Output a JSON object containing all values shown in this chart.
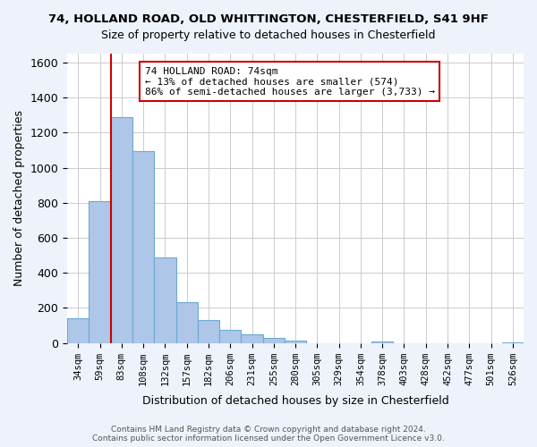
{
  "title": "74, HOLLAND ROAD, OLD WHITTINGTON, CHESTERFIELD, S41 9HF",
  "subtitle": "Size of property relative to detached houses in Chesterfield",
  "xlabel": "Distribution of detached houses by size in Chesterfield",
  "ylabel": "Number of detached properties",
  "bar_values": [
    140,
    810,
    1290,
    1095,
    490,
    235,
    130,
    75,
    50,
    28,
    15,
    0,
    0,
    0,
    10,
    0,
    0,
    0,
    0,
    0,
    5
  ],
  "x_tick_labels": [
    "34sqm",
    "59sqm",
    "83sqm",
    "108sqm",
    "132sqm",
    "157sqm",
    "182sqm",
    "206sqm",
    "231sqm",
    "255sqm",
    "280sqm",
    "305sqm",
    "329sqm",
    "354sqm",
    "378sqm",
    "403sqm",
    "428sqm",
    "452sqm",
    "477sqm",
    "501sqm",
    "526sqm"
  ],
  "bar_color": "#aec6e8",
  "bar_edge_color": "#6aaad4",
  "vline_x": 1.5,
  "vline_color": "#cc0000",
  "annotation_title": "74 HOLLAND ROAD: 74sqm",
  "annotation_line1": "← 13% of detached houses are smaller (574)",
  "annotation_line2": "86% of semi-detached houses are larger (3,733) →",
  "annotation_box_color": "#ffffff",
  "annotation_box_edge": "#cc0000",
  "ylim": [
    0,
    1650
  ],
  "yticks": [
    0,
    200,
    400,
    600,
    800,
    1000,
    1200,
    1400,
    1600
  ],
  "footer_line1": "Contains HM Land Registry data © Crown copyright and database right 2024.",
  "footer_line2": "Contains public sector information licensed under the Open Government Licence v3.0.",
  "background_color": "#eef2fb",
  "plot_background": "#ffffff",
  "grid_color": "#cccccc"
}
